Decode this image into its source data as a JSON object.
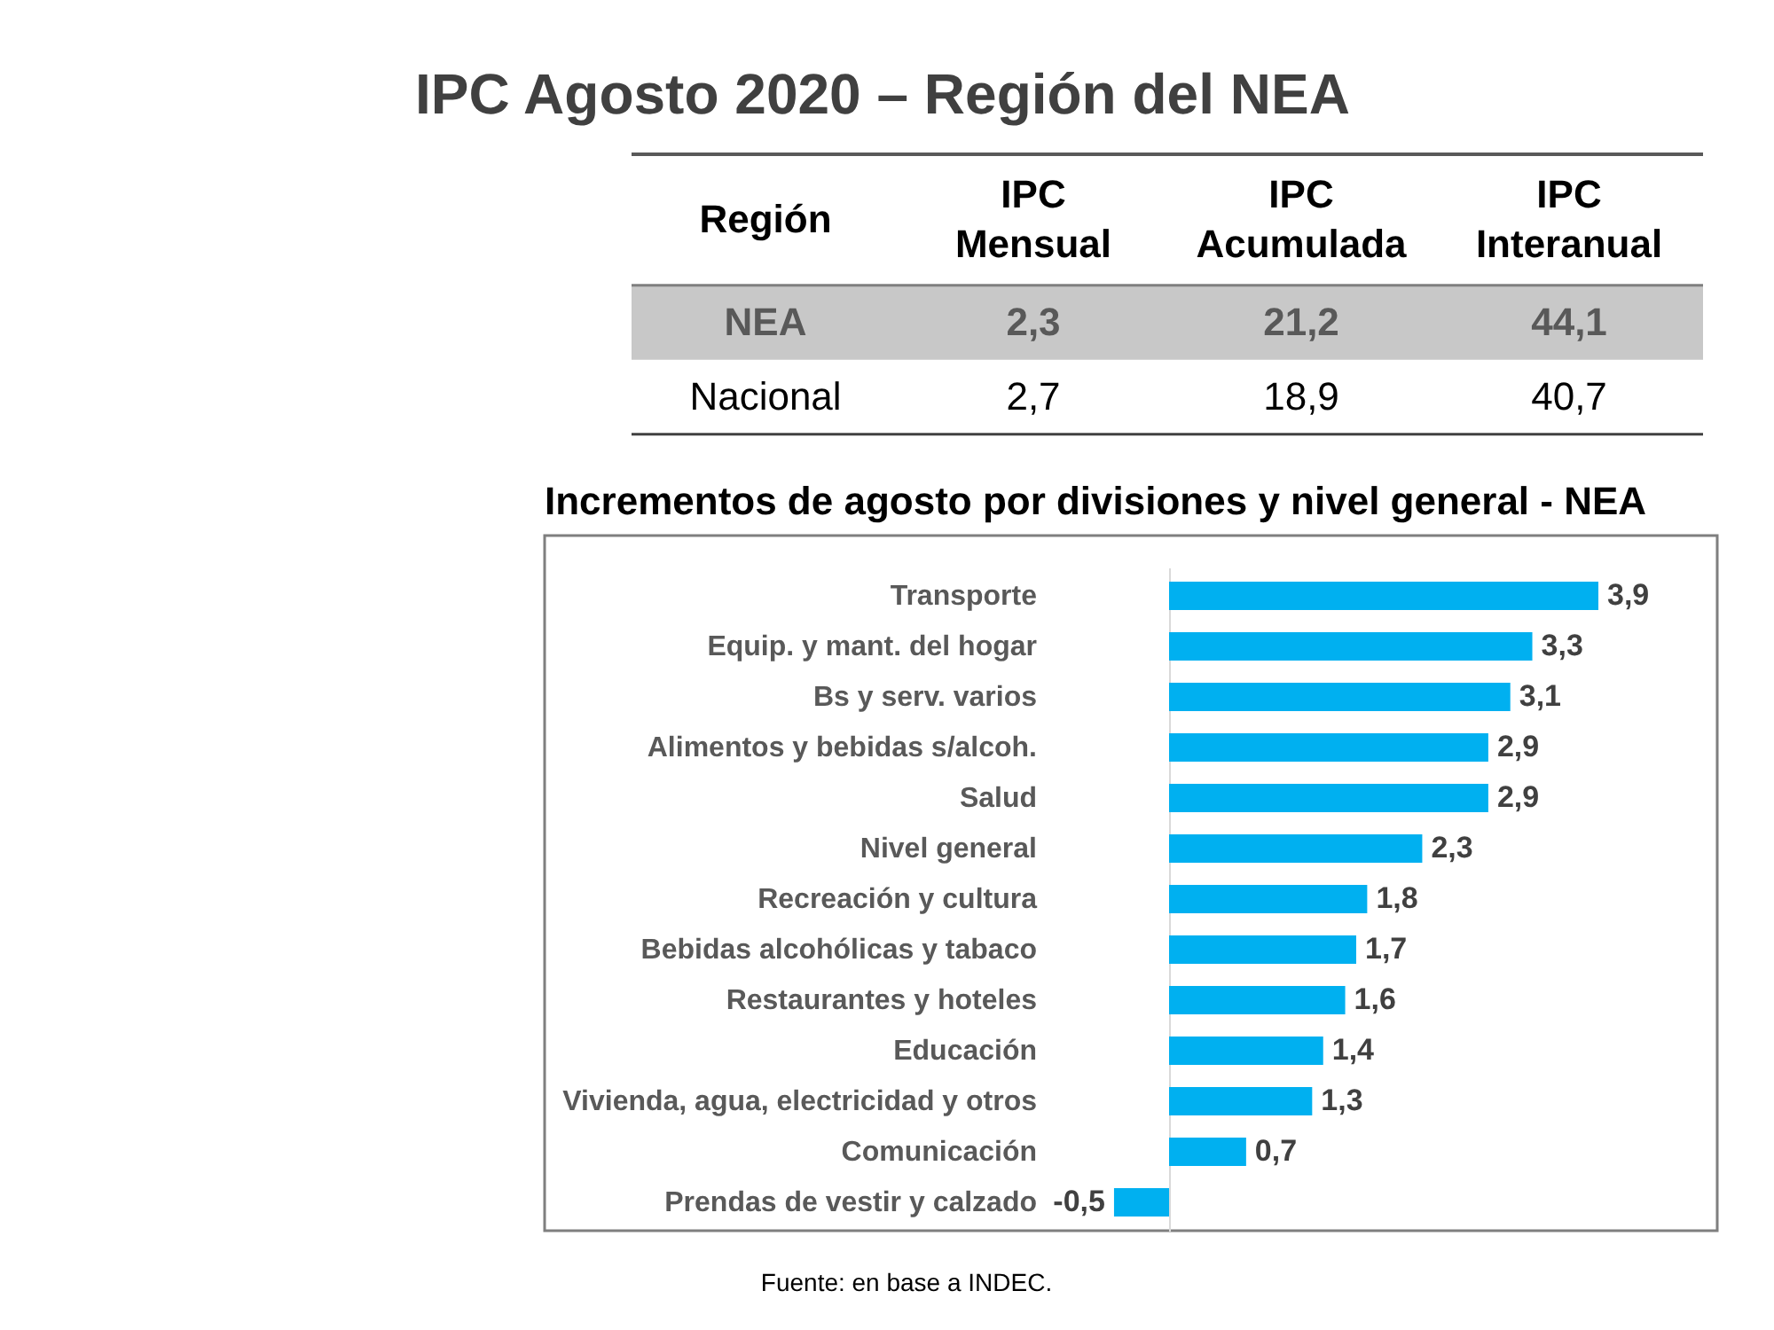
{
  "chart_data": [
    {
      "type": "other",
      "title": "IPC Agosto 2020 – Región del NEA",
      "legend_title": "Región",
      "categories": [
        "IPC Mensual",
        "IPC Acumulada",
        "IPC Interanual"
      ],
      "series": [
        {
          "name": "NEA",
          "color": "#c8c8c8",
          "values": [
            2.3,
            21.2,
            44.1
          ],
          "value_labels": [
            "2,3",
            "21,2",
            "44,1"
          ]
        },
        {
          "name": "Nacional",
          "values": [
            2.7,
            18.9,
            40.7
          ],
          "value_labels": [
            "2,7",
            "18,9",
            "40,7"
          ]
        }
      ]
    },
    {
      "type": "bar",
      "orientation": "horizontal",
      "title": "Incrementos de agosto por divisiones y nivel general - NEA",
      "categories": [
        "Transporte",
        "Equip. y mant. del hogar",
        "Bs y serv. varios",
        "Alimentos y bebidas s/alcoh.",
        "Salud",
        "Nivel general",
        "Recreación y cultura",
        "Bebidas alcohólicas y tabaco",
        "Restaurantes y hoteles",
        "Educación",
        "Vivienda, agua, electricidad y otros",
        "Comunicación",
        "Prendas de vestir y calzado"
      ],
      "values": [
        3.9,
        3.3,
        3.1,
        2.9,
        2.9,
        2.3,
        1.8,
        1.7,
        1.6,
        1.4,
        1.3,
        0.7,
        -0.5
      ],
      "value_labels": [
        "3,9",
        "3,3",
        "3,1",
        "2,9",
        "2,9",
        "2,3",
        "1,8",
        "1,7",
        "1,6",
        "1,4",
        "1,3",
        "0,7",
        "-0,5"
      ],
      "color": "#00b0f0",
      "annotations": [
        "Fuente: en base a INDEC."
      ]
    }
  ]
}
